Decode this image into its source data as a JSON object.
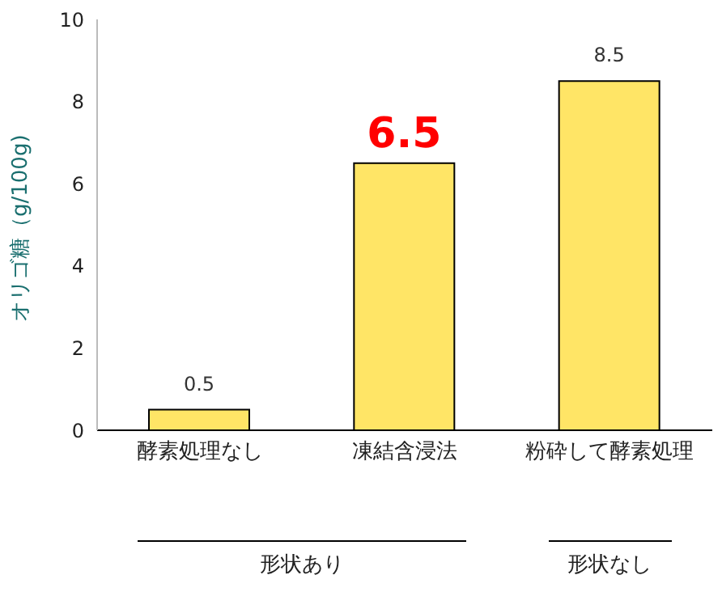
{
  "chart_data": {
    "type": "bar",
    "ylabel": "オリゴ糖（g/100g)",
    "categories": [
      "酵素処理なし",
      "凍結含浸法",
      "粉砕して酵素処理"
    ],
    "values": [
      0.5,
      6.5,
      8.5
    ],
    "color": "#ffe566",
    "ylim": [
      0,
      10
    ],
    "yticks": [
      0,
      2,
      4,
      6,
      8,
      10
    ],
    "data_labels": true,
    "annotations": [
      "形状あり",
      "形状なし"
    ]
  }
}
